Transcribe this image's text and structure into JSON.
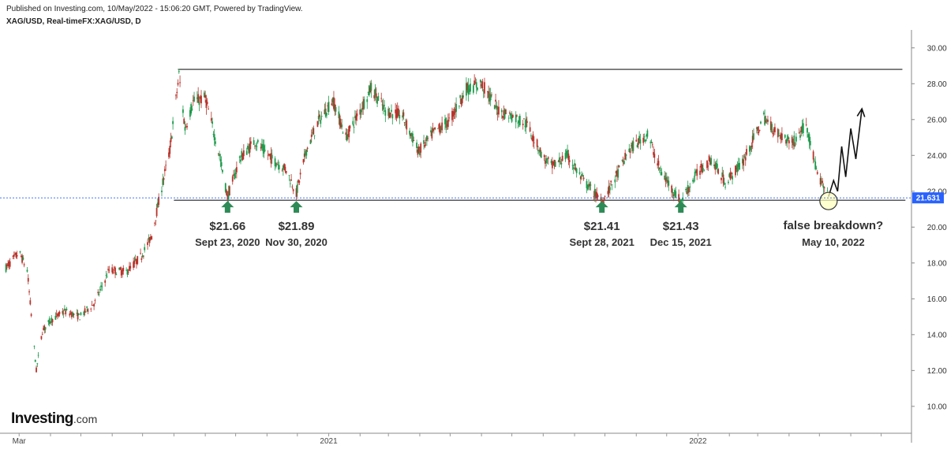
{
  "header": {
    "published": "Published on Investing.com, 10/May/2022 - 15:06:20 GMT, Powered by TradingView.",
    "symbol": "XAG/USD, Real-timeFX:XAG/USD, D"
  },
  "logo": {
    "brand": "Investing",
    "suffix": ".com"
  },
  "colors": {
    "up": "#1e9a4b",
    "down": "#b8322a",
    "arrow": "#2e8b57",
    "last_price": "#2962ff"
  },
  "chart_data": {
    "type": "line",
    "title": "",
    "xlabel": "",
    "ylabel": "",
    "ylim": [
      8.5,
      31
    ],
    "y_ticks": [
      "10.000",
      "12.000",
      "14.000",
      "16.000",
      "18.000",
      "20.000",
      "22.000",
      "24.000",
      "26.000",
      "28.000",
      "30.000"
    ],
    "x_ticks": [
      {
        "label": "Mar",
        "date": "2020-03-01"
      },
      {
        "label": "2021",
        "date": "2021-01-01"
      },
      {
        "label": "2022",
        "date": "2022-01-01"
      }
    ],
    "x_range": [
      "2020-02-15",
      "2022-07-31"
    ],
    "grid": false,
    "last_price": {
      "label": "21.631",
      "value": 21.631
    },
    "series": [
      {
        "x": [
          "2020-02-15",
          "2020-03-01",
          "2020-03-09",
          "2020-03-18",
          "2020-03-24",
          "2020-04-01",
          "2020-04-15",
          "2020-04-30",
          "2020-05-15",
          "2020-05-29",
          "2020-06-15",
          "2020-06-30",
          "2020-07-10",
          "2020-07-21",
          "2020-07-28",
          "2020-08-06",
          "2020-08-12",
          "2020-08-20",
          "2020-09-01",
          "2020-09-15",
          "2020-09-23",
          "2020-10-05",
          "2020-10-20",
          "2020-11-06",
          "2020-11-20",
          "2020-11-30",
          "2020-12-10",
          "2020-12-21",
          "2021-01-05",
          "2021-01-18",
          "2021-02-01",
          "2021-02-12",
          "2021-02-26",
          "2021-03-15",
          "2021-03-31",
          "2021-04-15",
          "2021-04-30",
          "2021-05-17",
          "2021-06-01",
          "2021-06-18",
          "2021-07-01",
          "2021-07-15",
          "2021-08-02",
          "2021-08-10",
          "2021-08-25",
          "2021-09-08",
          "2021-09-28",
          "2021-10-10",
          "2021-10-25",
          "2021-11-12",
          "2021-11-25",
          "2021-12-15",
          "2021-12-31",
          "2022-01-14",
          "2022-01-28",
          "2022-02-14",
          "2022-03-07",
          "2022-03-21",
          "2022-04-05",
          "2022-04-18",
          "2022-04-29",
          "2022-05-10"
        ],
        "y": [
          17.6,
          18.6,
          17.6,
          12.0,
          14.2,
          14.8,
          15.3,
          15.0,
          15.8,
          17.6,
          17.5,
          18.4,
          19.5,
          22.5,
          24.3,
          28.5,
          25.5,
          27.0,
          27.2,
          24.0,
          21.66,
          23.8,
          24.8,
          23.8,
          23.2,
          21.89,
          24.3,
          25.8,
          27.1,
          25.0,
          26.5,
          27.8,
          26.5,
          26.2,
          24.2,
          25.3,
          25.9,
          27.7,
          28.0,
          26.5,
          26.2,
          25.8,
          23.8,
          23.4,
          24.0,
          22.7,
          21.41,
          22.6,
          24.3,
          25.2,
          23.1,
          21.43,
          23.0,
          23.8,
          22.5,
          23.6,
          26.1,
          25.2,
          24.7,
          25.8,
          22.9,
          21.63
        ]
      }
    ],
    "lines": [
      {
        "name": "resistance",
        "value": 28.8,
        "from": "2020-08-05",
        "to": "2022-07-22"
      },
      {
        "name": "support",
        "value": 21.5,
        "from": "2020-08-01",
        "to": "2022-07-25"
      }
    ],
    "annotations": [
      {
        "name": "sep-2020",
        "date": "2020-09-23",
        "price": "$21.66",
        "label": "Sept 23, 2020",
        "value": 21.66
      },
      {
        "name": "nov-2020",
        "date": "2020-11-30",
        "price": "$21.89",
        "label": "Nov 30, 2020",
        "value": 21.89
      },
      {
        "name": "sep-2021",
        "date": "2021-09-28",
        "price": "$21.41",
        "label": "Sept 28, 2021",
        "value": 21.41
      },
      {
        "name": "dec-2021",
        "date": "2021-12-15",
        "price": "$21.43",
        "label": "Dec 15, 2021",
        "value": 21.43
      },
      {
        "name": "may-2022",
        "date": "2022-05-10",
        "price": "false breakdown?",
        "label": "May 10, 2022",
        "value": 21.4
      }
    ],
    "projection": {
      "x": [
        "2022-05-10",
        "2022-05-15",
        "2022-05-19",
        "2022-05-23",
        "2022-05-27",
        "2022-06-01",
        "2022-06-06",
        "2022-06-12"
      ],
      "y": [
        21.7,
        22.6,
        22.0,
        24.5,
        22.8,
        25.5,
        23.8,
        26.6
      ]
    }
  }
}
